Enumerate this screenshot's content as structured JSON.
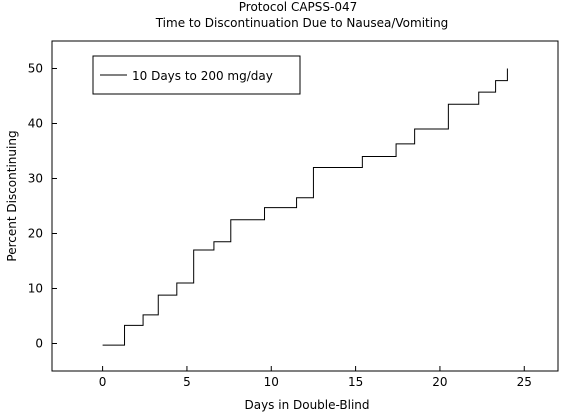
{
  "chart_data": {
    "type": "line",
    "title": "Protocol CAPSS-047",
    "subtitle": "Time to Discontinuation Due to Nausea/Vomiting",
    "xlabel": "Days in Double-Blind",
    "ylabel": "Percent Discontinuing",
    "xlim": [
      -3,
      27
    ],
    "ylim": [
      -5,
      55
    ],
    "xticks": [
      0,
      5,
      10,
      15,
      20,
      25
    ],
    "yticks": [
      0,
      10,
      20,
      30,
      40,
      50
    ],
    "grid": false,
    "legend_position": "top-left",
    "step": true,
    "series": [
      {
        "name": "10 Days to 200 mg/day",
        "color": "#000000",
        "x": [
          0,
          1.3,
          2.4,
          3.3,
          4.4,
          5.4,
          6.6,
          7.6,
          9.6,
          11.5,
          12.5,
          15.4,
          17.4,
          18.5,
          20.5,
          22.3,
          23.3,
          24.0
        ],
        "y": [
          -0.3,
          3.3,
          5.2,
          8.8,
          11.0,
          17.0,
          18.5,
          22.5,
          24.7,
          26.5,
          32.0,
          34.0,
          36.3,
          39.0,
          43.5,
          45.7,
          47.8,
          50.0
        ],
        "x_end": 24.0
      }
    ]
  }
}
